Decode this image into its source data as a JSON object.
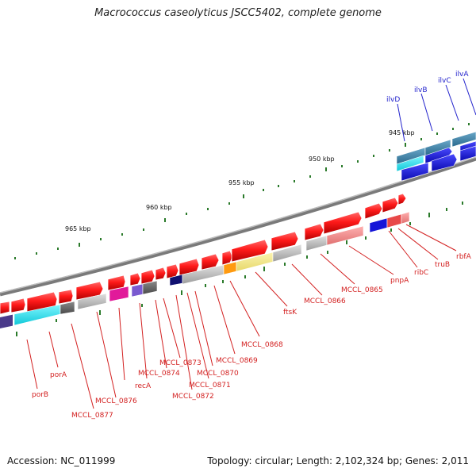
{
  "title": "Macrococcus caseolyticus JSCC5402, complete genome",
  "footer": {
    "accession": "Accession: NC_011999",
    "summary": "Topology: circular; Length: 2,102,324 bp; Genes: 2,011"
  },
  "ticks": [
    "945 kbp",
    "950 kbp",
    "955 kbp",
    "960 kbp",
    "965 kbp"
  ],
  "genes_top": [
    "ilvD",
    "ilvB",
    "ilvC",
    "ilvA"
  ],
  "genes_bottom": [
    "rbfA",
    "truB",
    "ribC",
    "pnpA",
    "MCCL_0865",
    "MCCL_0866",
    "ftsK",
    "MCCL_0868",
    "MCCL_0869",
    "MCCL_0870",
    "MCCL_0871",
    "MCCL_0872",
    "MCCL_0873",
    "MCCL_0874",
    "recA",
    "MCCL_0876",
    "MCCL_0877",
    "porA",
    "porB"
  ],
  "colors": {
    "forward_gene": "#e8211d",
    "ilv_gene": "#1515d8",
    "label_red": "#d32020",
    "label_blue": "#2222cc",
    "backbone": "#808080",
    "tick": "#2a7a2a"
  }
}
